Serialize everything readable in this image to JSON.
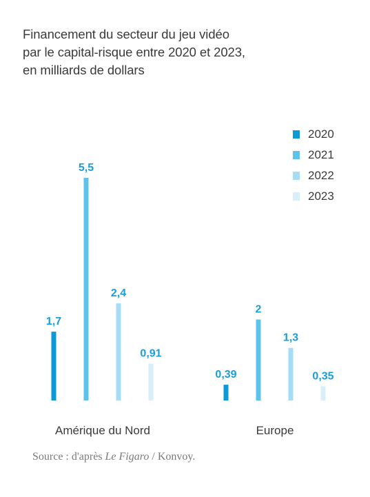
{
  "title_lines": [
    "Financement du secteur du jeu vidéo",
    "par le capital-risque entre 2020 et 2023,",
    "en milliards de dollars"
  ],
  "source": {
    "prefix": "Source : d'après ",
    "publication": "Le Figaro",
    "suffix": " / Konvoy."
  },
  "colors": {
    "2020": "#0d98d6",
    "2021": "#5ec3ec",
    "2022": "#a6dcf5",
    "2023": "#d8eff9",
    "value_label": "#1b9dd9",
    "text": "#3a3a3a"
  },
  "chart_data": {
    "type": "bar",
    "categories": [
      "Amérique du Nord",
      "Europe"
    ],
    "series": [
      {
        "name": "2020",
        "values": [
          1.7,
          0.39
        ],
        "labels": [
          "1,7",
          "0,39"
        ]
      },
      {
        "name": "2021",
        "values": [
          5.5,
          2
        ],
        "labels": [
          "5,5",
          "2"
        ]
      },
      {
        "name": "2022",
        "values": [
          2.4,
          1.3
        ],
        "labels": [
          "2,4",
          "1,3"
        ]
      },
      {
        "name": "2023",
        "values": [
          0.91,
          0.35
        ],
        "labels": [
          "0,91",
          "0,35"
        ]
      }
    ],
    "title": "Financement du secteur du jeu vidéo par le capital-risque entre 2020 et 2023, en milliards de dollars",
    "xlabel": "",
    "ylabel": "",
    "ylim": [
      0,
      5.5
    ],
    "grid": false,
    "legend": "top-right",
    "value_labels": true
  }
}
